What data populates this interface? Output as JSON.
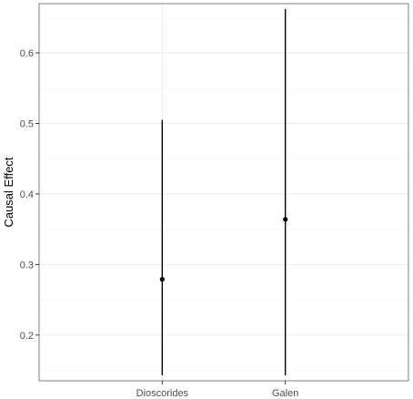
{
  "chart_data": {
    "type": "errorbar",
    "ylabel": "Causal Effect",
    "xlabel": "",
    "categories": [
      "Dioscorides",
      "Galen"
    ],
    "points": [
      {
        "category": "Dioscorides",
        "estimate": 0.279,
        "lower": 0.143,
        "upper": 0.505
      },
      {
        "category": "Galen",
        "estimate": 0.364,
        "lower": 0.143,
        "upper": 0.662
      }
    ],
    "yticks": [
      0.2,
      0.3,
      0.4,
      0.5,
      0.6
    ],
    "ylim": [
      0.1352,
      0.6698
    ],
    "grid": true,
    "colors": {
      "panel_border": "#7f7f7f",
      "grid_major": "#ebebeb",
      "grid_minor": "#f5f5f5",
      "mark": "#000000"
    }
  }
}
